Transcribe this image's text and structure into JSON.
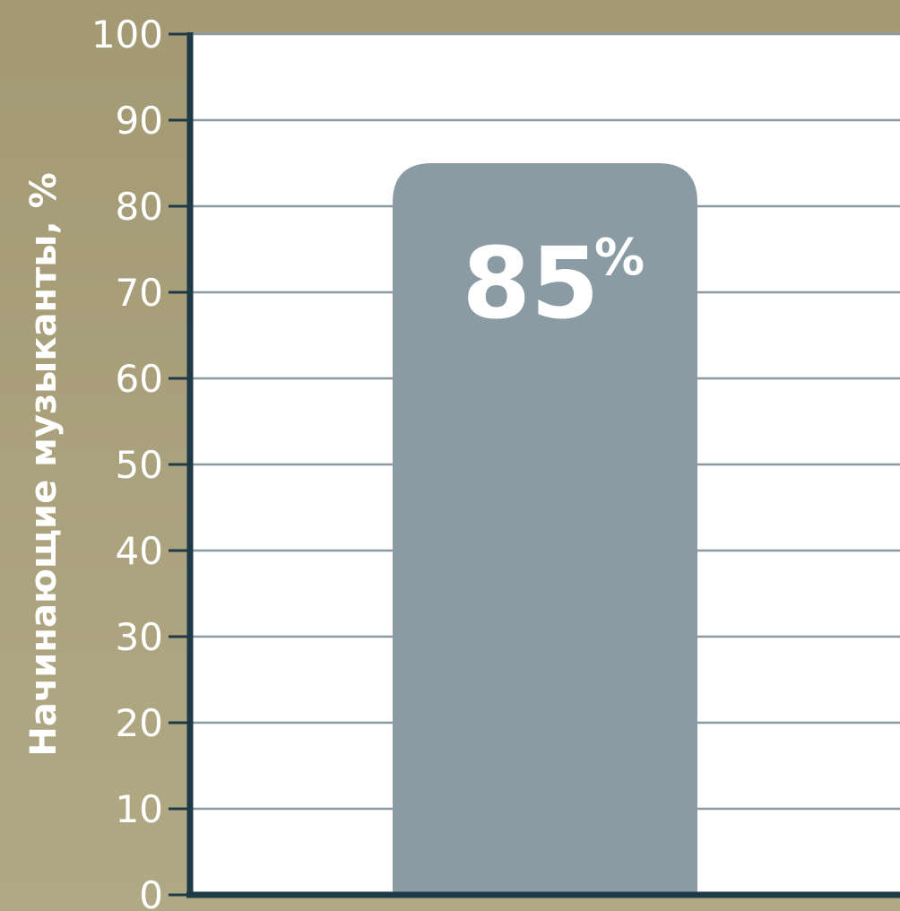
{
  "chart_data": {
    "type": "bar",
    "categories": [
      ""
    ],
    "values": [
      85
    ],
    "data_labels": [
      {
        "number": "85",
        "unit": "%"
      }
    ],
    "ylabel": "Начинающие музыканты, %",
    "ylim": [
      0,
      100
    ],
    "yticks": [
      "0",
      "10",
      "20",
      "30",
      "40",
      "50",
      "60",
      "70",
      "80",
      "90",
      "100"
    ],
    "grid": true,
    "colors": {
      "background": "#a8a07c",
      "plot_area": "#ffffff",
      "bar": "#8a9ba3",
      "axis": "#1e3a46",
      "gridline": "#8a9ba3",
      "text": "#ffffff"
    }
  }
}
